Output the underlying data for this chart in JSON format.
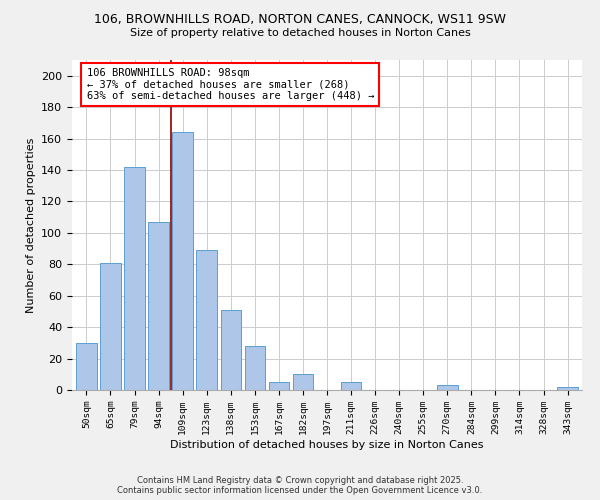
{
  "title": "106, BROWNHILLS ROAD, NORTON CANES, CANNOCK, WS11 9SW",
  "subtitle": "Size of property relative to detached houses in Norton Canes",
  "xlabel": "Distribution of detached houses by size in Norton Canes",
  "ylabel": "Number of detached properties",
  "bar_labels": [
    "50sqm",
    "65sqm",
    "79sqm",
    "94sqm",
    "109sqm",
    "123sqm",
    "138sqm",
    "153sqm",
    "167sqm",
    "182sqm",
    "197sqm",
    "211sqm",
    "226sqm",
    "240sqm",
    "255sqm",
    "270sqm",
    "284sqm",
    "299sqm",
    "314sqm",
    "328sqm",
    "343sqm"
  ],
  "bar_values": [
    30,
    81,
    142,
    107,
    164,
    89,
    51,
    28,
    5,
    10,
    0,
    5,
    0,
    0,
    0,
    3,
    0,
    0,
    0,
    0,
    2
  ],
  "bar_color": "#aec6e8",
  "bar_edge_color": "#5a9fd4",
  "vline_x": 3.5,
  "vline_color": "#8b0000",
  "annotation_text": "106 BROWNHILLS ROAD: 98sqm\n← 37% of detached houses are smaller (268)\n63% of semi-detached houses are larger (448) →",
  "annotation_box_color": "white",
  "annotation_box_edge": "red",
  "ylim": [
    0,
    210
  ],
  "yticks": [
    0,
    20,
    40,
    60,
    80,
    100,
    120,
    140,
    160,
    180,
    200
  ],
  "footer_line1": "Contains HM Land Registry data © Crown copyright and database right 2025.",
  "footer_line2": "Contains public sector information licensed under the Open Government Licence v3.0.",
  "bg_color": "#f0f0f0",
  "plot_bg_color": "#ffffff",
  "grid_color": "#cccccc"
}
